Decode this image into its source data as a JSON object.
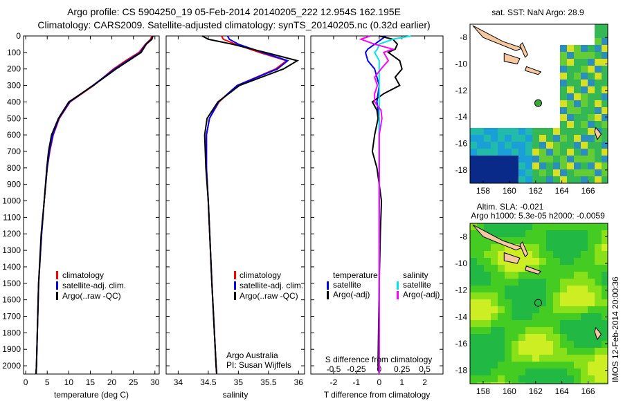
{
  "titles": {
    "line1": "Argo profile: CS 5904250_19 05-Feb-2014 20140205_222 12.954S 162.195E",
    "line2": "Climatology: CARS2009. Satellite-adjusted climatology: synTS_20140205.nc (0.32d earlier)"
  },
  "credits": {
    "org": "Argo Australia",
    "pi": "PI: Susan Wijffels",
    "stamp": "IMOS 12-Feb-2014 20:00:36"
  },
  "colors": {
    "climatology": "#ff0000",
    "satellite": "#0000ff",
    "argo": "#000000",
    "sal_satellite": "#00e5ee",
    "sal_argo": "#ff00ff",
    "ocean": "#33cc22",
    "land": "#f5c8a0"
  },
  "chart_data": [
    {
      "type": "line",
      "id": "temperature",
      "xlabel": "temperature (deg C)",
      "ylabel": "",
      "xlim": [
        -0.5,
        31
      ],
      "ylim": [
        2050,
        0
      ],
      "xticks": [
        "0",
        "5",
        "10",
        "15",
        "20",
        "25",
        "30"
      ],
      "xtickvals": [
        0,
        5,
        10,
        15,
        20,
        25,
        30
      ],
      "yticks": [
        "0",
        "100",
        "200",
        "300",
        "400",
        "500",
        "600",
        "700",
        "800",
        "900",
        "1000",
        "1100",
        "1200",
        "1300",
        "1400",
        "1500",
        "1600",
        "1700",
        "1800",
        "1900",
        "2000"
      ],
      "legend": [
        "climatology",
        "satellite-adj. clim.",
        "Argo(..raw -QC)"
      ],
      "depth": [
        0,
        20,
        50,
        100,
        150,
        200,
        300,
        400,
        500,
        600,
        700,
        800,
        1000,
        1200,
        1500,
        2000,
        2050
      ],
      "series": [
        {
          "name": "climatology",
          "values": [
            29.3,
            29.0,
            27.8,
            26.3,
            23.2,
            20.4,
            15.8,
            10.3,
            7.8,
            6.4,
            5.6,
            5.0,
            4.3,
            3.7,
            3.0,
            2.5,
            2.4
          ]
        },
        {
          "name": "satellite-adj. clim.",
          "values": [
            29.6,
            29.2,
            27.9,
            26.6,
            23.6,
            20.7,
            15.6,
            10.2,
            7.7,
            6.3,
            5.5,
            5.0,
            4.3,
            3.7,
            3.0,
            2.5,
            2.4
          ]
        },
        {
          "name": "Argo(..raw -QC)",
          "values": [
            29.5,
            29.3,
            28.0,
            26.8,
            23.9,
            21.0,
            15.7,
            10.0,
            7.6,
            6.0,
            5.3,
            4.9,
            4.3,
            3.6,
            3.0,
            2.5,
            2.4
          ]
        }
      ]
    },
    {
      "type": "line",
      "id": "salinity",
      "xlabel": "salinity",
      "xlim": [
        33.8,
        36.1
      ],
      "ylim": [
        2050,
        0
      ],
      "xticks": [
        "34",
        "34.5",
        "35",
        "35.5",
        "36"
      ],
      "xtickvals": [
        34,
        34.5,
        35,
        35.5,
        36
      ],
      "legend": [
        "climatology",
        "satellite-adj. clim.",
        "Argo(..raw -QC)"
      ],
      "depth": [
        0,
        20,
        50,
        100,
        150,
        200,
        300,
        400,
        500,
        600,
        800,
        1000,
        1500,
        2000,
        2050
      ],
      "series": [
        {
          "name": "climatology",
          "values": [
            34.72,
            34.75,
            34.95,
            35.35,
            35.8,
            35.62,
            34.98,
            34.68,
            34.52,
            34.47,
            34.47,
            34.5,
            34.56,
            34.63,
            34.64
          ]
        },
        {
          "name": "satellite-adj. clim.",
          "values": [
            34.82,
            34.85,
            35.0,
            35.4,
            35.82,
            35.65,
            34.98,
            34.67,
            34.52,
            34.47,
            34.47,
            34.5,
            34.56,
            34.63,
            34.64
          ]
        },
        {
          "name": "Argo(..raw -QC)",
          "values": [
            34.4,
            34.5,
            34.9,
            35.45,
            35.98,
            35.75,
            35.02,
            34.66,
            34.48,
            34.44,
            34.46,
            34.5,
            34.56,
            34.63,
            34.64
          ]
        }
      ]
    },
    {
      "type": "line",
      "id": "difference",
      "xlabel": "T difference from climatology",
      "x2label": "S difference from climatology",
      "xlim": [
        -3,
        2.8
      ],
      "ylim": [
        2050,
        0
      ],
      "xticks": [
        "-2",
        "-1",
        "0",
        "1",
        "2"
      ],
      "xtickvals": [
        -2,
        -1,
        0,
        1,
        2
      ],
      "x2ticks": [
        "-0.5",
        "-0.25",
        "0",
        "0.25",
        "0.5"
      ],
      "x2tickvals": [
        -0.5,
        -0.25,
        0,
        0.25,
        0.5
      ],
      "legend": {
        "temperature_title": "temperature",
        "salinity_title": "salinity",
        "t_sat": "satellite",
        "t_argo": "Argo(-adj)",
        "s_sat": "satellite",
        "s_argo": "Argo(-adj)"
      },
      "depth": [
        0,
        20,
        50,
        80,
        100,
        150,
        200,
        250,
        300,
        350,
        400,
        450,
        500,
        600,
        700,
        800,
        1000,
        1200,
        1500,
        2000,
        2050
      ],
      "series": [
        {
          "name": "T satellite",
          "units": "degC",
          "values": [
            0.3,
            0.1,
            -0.2,
            -0.5,
            -0.6,
            -0.5,
            -0.2,
            -0.1,
            0.0,
            -0.05,
            -0.1,
            -0.05,
            0.0,
            0.0,
            0.0,
            0.0,
            0.0,
            0.0,
            0.0,
            0.0,
            0.0
          ]
        },
        {
          "name": "T Argo(-adj)",
          "units": "degC",
          "values": [
            0.0,
            0.6,
            0.8,
            0.7,
            0.4,
            0.9,
            1.0,
            0.7,
            0.9,
            0.2,
            -0.3,
            -0.1,
            -0.05,
            -0.2,
            -0.3,
            -0.1,
            0.1,
            0.05,
            0.0,
            -0.05,
            0.0
          ]
        },
        {
          "name": "S satellite",
          "units": "psu",
          "values": [
            0.35,
            0.15,
            0.0,
            -0.02,
            -0.05,
            0.0,
            0.0,
            0.0,
            0.0,
            0.0,
            0.0,
            0.0,
            0.0,
            0.0,
            0.0,
            0.0,
            0.0,
            0.0,
            0.0,
            0.0,
            0.0
          ]
        },
        {
          "name": "S Argo(-adj)",
          "units": "psu",
          "values": [
            -0.1,
            -0.2,
            -0.05,
            0.15,
            0.05,
            0.1,
            0.02,
            -0.05,
            -0.02,
            -0.05,
            -0.05,
            0.02,
            0.03,
            0.0,
            0.0,
            0.0,
            0.0,
            0.0,
            0.0,
            0.0,
            0.0
          ]
        }
      ]
    },
    {
      "type": "heatmap",
      "id": "sst-map",
      "title": "sat. SST: NaN Argo: 28.9",
      "xlim": [
        157,
        167.5
      ],
      "ylim": [
        -19,
        -7
      ],
      "xticks": [
        "158",
        "160",
        "162",
        "164",
        "166"
      ],
      "xtickvals": [
        158,
        160,
        162,
        164,
        166
      ],
      "yticks": [
        "-8",
        "-10",
        "-12",
        "-14",
        "-16",
        "-18"
      ],
      "ytickvals": [
        -8,
        -10,
        -12,
        -14,
        -16,
        -18
      ],
      "float_position": [
        162.195,
        -12.954
      ]
    },
    {
      "type": "heatmap",
      "id": "sla-map",
      "title": "Altim. SLA: -0.021",
      "subtitle": "Argo h1000: 5.3e-05 h2000: -0.0059",
      "xlim": [
        157,
        167.5
      ],
      "ylim": [
        -19,
        -7
      ],
      "xticks": [
        "158",
        "160",
        "162",
        "164",
        "166"
      ],
      "xtickvals": [
        158,
        160,
        162,
        164,
        166
      ],
      "yticks": [
        "-8",
        "-10",
        "-12",
        "-14",
        "-16",
        "-18"
      ],
      "ytickvals": [
        -8,
        -10,
        -12,
        -14,
        -16,
        -18
      ],
      "float_position": [
        162.195,
        -12.954
      ]
    }
  ]
}
